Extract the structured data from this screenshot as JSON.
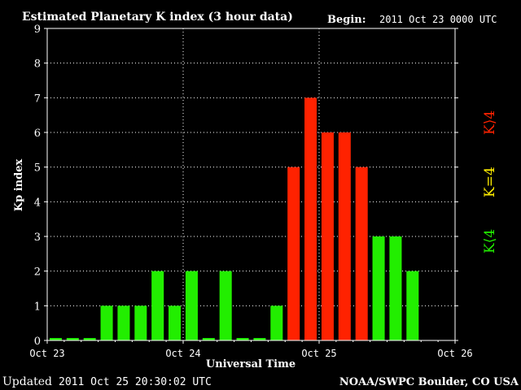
{
  "header": {
    "title": "Estimated Planetary K index (3 hour data)",
    "begin_label": "Begin:",
    "begin_value": "2011 Oct 23 0000 UTC"
  },
  "footer": {
    "updated_label": "Updated",
    "updated_value": "2011 Oct 25 20:30:02 UTC",
    "source": "NOAA/SWPC Boulder, CO USA"
  },
  "legend": {
    "low": "K⟨4",
    "mid": "K=4",
    "high": "K⟩4"
  },
  "colors": {
    "background": "#000000",
    "low": "#22ee00",
    "mid": "#ffee00",
    "high": "#ff2200",
    "axis": "#ffffff"
  },
  "chart_data": {
    "type": "bar",
    "title": "Estimated Planetary K index (3 hour data)",
    "xlabel": "Universal Time",
    "ylabel": "Kp index",
    "ylim": [
      0,
      9
    ],
    "yticks": [
      0,
      1,
      2,
      3,
      4,
      5,
      6,
      7,
      8,
      9
    ],
    "xticks": [
      "Oct 23",
      "Oct 24",
      "Oct 25",
      "Oct 26"
    ],
    "grid": true,
    "bins_per_day": 8,
    "values": [
      0,
      0,
      0,
      1,
      1,
      1,
      2,
      1,
      2,
      0,
      2,
      0,
      0,
      1,
      5,
      7,
      6,
      6,
      5,
      3,
      3,
      2
    ]
  }
}
